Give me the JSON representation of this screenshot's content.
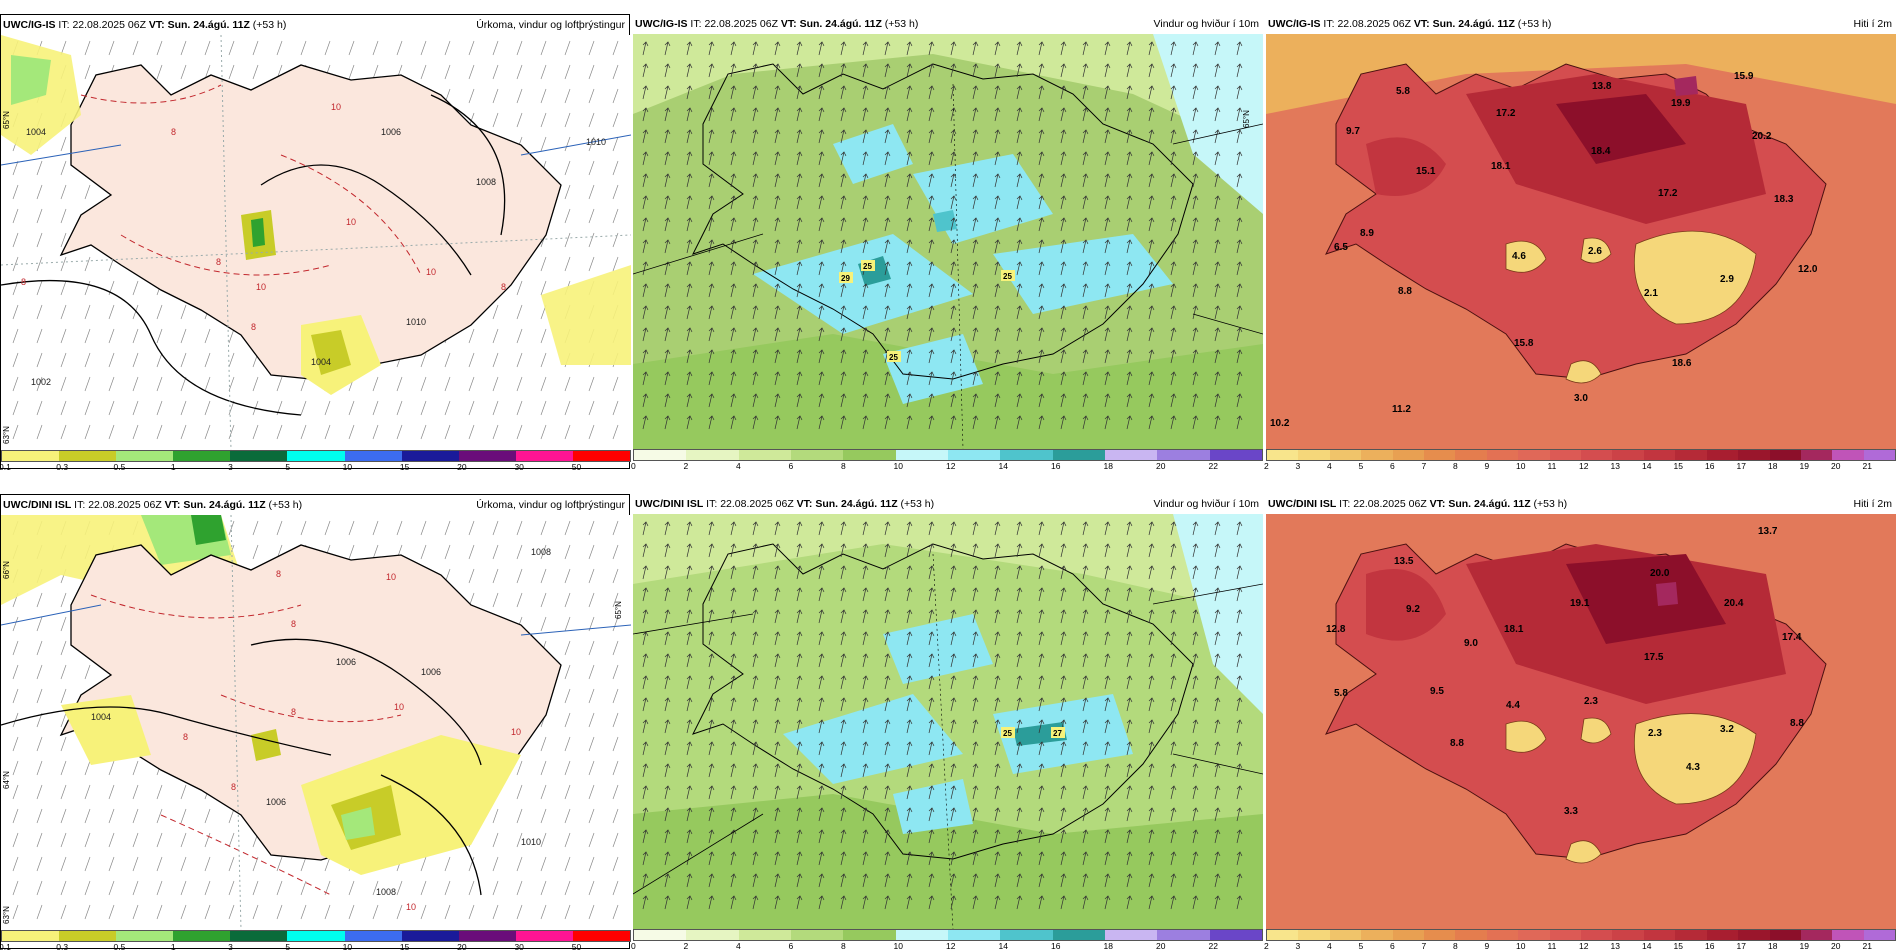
{
  "colors": {
    "land_rain": "#fbe7dd",
    "sea": "#ffffff",
    "wind_base": "#a9cf72",
    "temp_base": "#e2795a"
  },
  "rows": [
    {
      "model_label": "UWC/IG-IS",
      "issue_prefix": "IT:",
      "issue_time": "22.08.2025 06Z",
      "valid_prefix": "VT:",
      "valid_time": "Sun. 24.ágú. 11Z",
      "lead": "(+53 h)"
    },
    {
      "model_label": "UWC/DINI ISL",
      "issue_prefix": "IT:",
      "issue_time": "22.08.2025 06Z",
      "valid_prefix": "VT:",
      "valid_time": "Sun. 24.ágú. 11Z",
      "lead": "(+53 h)"
    }
  ],
  "panels": {
    "precip": {
      "title": "Úrkoma, vindur og loftþrýstingur",
      "colorbar": {
        "ticks": [
          "0.1",
          "0.3",
          "0.5",
          "1",
          "3",
          "5",
          "10",
          "15",
          "20",
          "30",
          "50"
        ],
        "colors": [
          "#f7f27a",
          "#c8cc28",
          "#a4e87a",
          "#2fa22f",
          "#0a6b3a",
          "#00ffee",
          "#3c6cf0",
          "#1a1a9a",
          "#6a0d7a",
          "#ff1493",
          "#ff0000"
        ]
      },
      "row1": {
        "isobars": [
          "1004",
          "1008",
          "1006",
          "1010",
          "1004",
          "1002",
          "1010"
        ],
        "red_labels": [
          "8",
          "10",
          "10",
          "8",
          "10",
          "10",
          "8",
          "8",
          "8"
        ],
        "lat_labels": [
          "65°N",
          "63°N"
        ]
      },
      "row2": {
        "isobars": [
          "1008",
          "1006",
          "1006",
          "1004",
          "1006",
          "1010",
          "1008"
        ],
        "red_labels": [
          "8",
          "8",
          "10",
          "8",
          "10",
          "8",
          "8",
          "10",
          "10"
        ],
        "lat_labels": [
          "66°N",
          "65°N",
          "64°N",
          "63°N"
        ]
      }
    },
    "wind": {
      "title": "Vindur og hviður í 10m",
      "colorbar": {
        "ticks": [
          "0",
          "2",
          "4",
          "6",
          "8",
          "10",
          "12",
          "14",
          "16",
          "18",
          "20",
          "22"
        ],
        "colors": [
          "#f6fbe6",
          "#e6f5c2",
          "#cfe99a",
          "#b3da7c",
          "#96c95e",
          "#c6f7f9",
          "#8ee7f2",
          "#4fc4cc",
          "#2b9d9a",
          "#c9b6f2",
          "#9c7fe0",
          "#6a46c8"
        ]
      },
      "row1": {
        "gust_badges": [
          "25",
          "29",
          "25",
          "25"
        ],
        "lat_labels": [
          "65°N"
        ]
      },
      "row2": {
        "gust_badges": [
          "25",
          "27"
        ],
        "lat_labels": []
      }
    },
    "temp": {
      "title": "Hiti í 2m",
      "colorbar": {
        "ticks": [
          "2",
          "3",
          "4",
          "5",
          "6",
          "7",
          "8",
          "9",
          "10",
          "11",
          "12",
          "13",
          "14",
          "15",
          "16",
          "17",
          "18",
          "19",
          "20",
          "21"
        ],
        "colors": [
          "#f8e58c",
          "#f5d77a",
          "#f0c46a",
          "#ecb05c",
          "#e8a052",
          "#e68d4d",
          "#e47d4e",
          "#e37154",
          "#e06858",
          "#dc5a55",
          "#d44d4f",
          "#cc4247",
          "#c2353f",
          "#b52a37",
          "#a81e30",
          "#9a162c",
          "#8c0f2a",
          "#a4285e",
          "#c054b8",
          "#b06ad8"
        ]
      },
      "row1": {
        "values": [
          "5.8",
          "9.7",
          "17.2",
          "13.8",
          "19.9",
          "15.9",
          "15.1",
          "18.1",
          "18.4",
          "20.2",
          "17.2",
          "18.3",
          "8.9",
          "6.5",
          "4.6",
          "2.6",
          "12.0",
          "2.1",
          "2.9",
          "8.8",
          "15.8",
          "18.6",
          "3.0",
          "10.2",
          "11.2"
        ]
      },
      "row2": {
        "values": [
          "13.5",
          "13.7",
          "20.0",
          "9.2",
          "12.8",
          "19.1",
          "18.1",
          "20.4",
          "9.0",
          "17.4",
          "17.5",
          "5.8",
          "9.5",
          "4.4",
          "2.3",
          "8.8",
          "2.3",
          "3.2",
          "8.8",
          "4.3",
          "3.3"
        ]
      }
    }
  }
}
